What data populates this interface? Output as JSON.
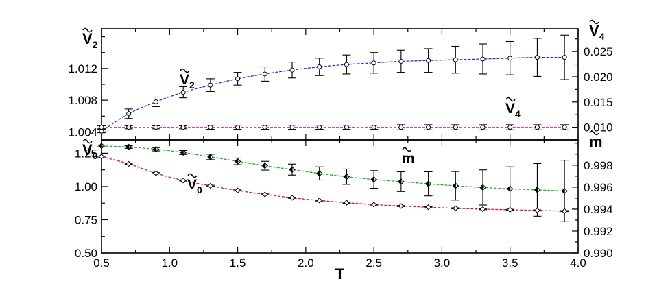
{
  "chart_data": [
    {
      "panel": "top",
      "type": "scatter",
      "xlabel": "T",
      "xlim": [
        0.5,
        4.0
      ],
      "x_ticks": [
        "0.5",
        "1.0",
        "1.5",
        "2.0",
        "2.5",
        "3.0",
        "3.5",
        "4.0"
      ],
      "left_axis": {
        "label": "V",
        "label_sub": "2",
        "ylim": [
          1.003,
          1.017
        ],
        "ticks": [
          "1.004",
          "1.008",
          "1.012"
        ]
      },
      "right_axis": {
        "label": "V",
        "label_sub": "4",
        "ylim": [
          0.0075,
          0.0295
        ],
        "ticks": [
          "0.010",
          "0.015",
          "0.020",
          "0.025"
        ]
      },
      "series": [
        {
          "name": "V",
          "name_sub": "2",
          "axis": "left",
          "marker": "open-circle",
          "fit_color": "#2b2bd0",
          "x": [
            0.5,
            0.7,
            0.9,
            1.1,
            1.3,
            1.5,
            1.7,
            1.9,
            2.1,
            2.3,
            2.5,
            2.7,
            2.9,
            3.1,
            3.3,
            3.5,
            3.7,
            3.9
          ],
          "y": [
            1.0041,
            1.0063,
            1.0078,
            1.009,
            1.0099,
            1.0107,
            1.0113,
            1.0118,
            1.0122,
            1.0125,
            1.0127,
            1.0129,
            1.013,
            1.0131,
            1.0132,
            1.0133,
            1.0134,
            1.0134
          ],
          "err": [
            0.0002,
            0.0006,
            0.0006,
            0.0007,
            0.0008,
            0.0008,
            0.0009,
            0.001,
            0.0011,
            0.0012,
            0.0013,
            0.0014,
            0.0015,
            0.0017,
            0.0019,
            0.0021,
            0.0024,
            0.0028
          ]
        },
        {
          "name": "V",
          "name_sub": "4",
          "axis": "right",
          "marker": "open-circle",
          "fit_color": "#d040c8",
          "x": [
            0.5,
            0.7,
            0.9,
            1.1,
            1.3,
            1.5,
            1.7,
            1.9,
            2.1,
            2.3,
            2.5,
            2.7,
            2.9,
            3.1,
            3.3,
            3.5,
            3.7,
            3.9
          ],
          "y": [
            0.01,
            0.01,
            0.01,
            0.01,
            0.01,
            0.01,
            0.01,
            0.01,
            0.01,
            0.01,
            0.01,
            0.01,
            0.01,
            0.01,
            0.01,
            0.01,
            0.01,
            0.01
          ],
          "err": [
            0.0003,
            0.0003,
            0.0003,
            0.0003,
            0.0004,
            0.0004,
            0.0004,
            0.0004,
            0.0004,
            0.0004,
            0.0004,
            0.0005,
            0.0005,
            0.0005,
            0.0005,
            0.0005,
            0.0005,
            0.0005
          ]
        }
      ]
    },
    {
      "panel": "bottom",
      "type": "scatter",
      "xlabel": "T",
      "xlim": [
        0.5,
        4.0
      ],
      "x_ticks": [
        "0.5",
        "1.0",
        "1.5",
        "2.0",
        "2.5",
        "3.0",
        "3.5",
        "4.0"
      ],
      "left_axis": {
        "label": "V",
        "label_sub": "0",
        "ylim": [
          0.5,
          1.35
        ],
        "ticks": [
          "0.50",
          "0.75",
          "1.00",
          "1.25"
        ]
      },
      "right_axis": {
        "label": "m",
        "label_sub": "",
        "ylim": [
          0.99,
          1.0003
        ],
        "ticks": [
          "0.990",
          "0.992",
          "0.994",
          "0.996",
          "0.998"
        ]
      },
      "series": [
        {
          "name": "V",
          "name_sub": "0",
          "axis": "left",
          "marker": "open-diamond",
          "fit_color": "#d02020",
          "x": [
            0.5,
            0.7,
            0.9,
            1.1,
            1.3,
            1.5,
            1.7,
            1.9,
            2.1,
            2.3,
            2.5,
            2.7,
            2.9,
            3.1,
            3.3,
            3.5,
            3.7,
            3.9
          ],
          "y": [
            1.225,
            1.17,
            1.1,
            1.045,
            1.005,
            0.97,
            0.94,
            0.915,
            0.895,
            0.878,
            0.864,
            0.853,
            0.844,
            0.836,
            0.83,
            0.825,
            0.82,
            0.815
          ],
          "err": [
            0.004,
            0.004,
            0.004,
            0.004,
            0.004,
            0.004,
            0.004,
            0.004,
            0.004,
            0.004,
            0.004,
            0.004,
            0.004,
            0.004,
            0.004,
            0.004,
            0.004,
            0.004
          ]
        },
        {
          "name": "m",
          "name_sub": "",
          "axis": "right",
          "marker": "half-filled-diamond",
          "fit_color": "#20b020",
          "x": [
            0.5,
            0.7,
            0.9,
            1.1,
            1.3,
            1.5,
            1.7,
            1.9,
            2.1,
            2.3,
            2.5,
            2.7,
            2.9,
            3.1,
            3.3,
            3.5,
            3.7,
            3.9
          ],
          "y": [
            0.99975,
            0.99965,
            0.99945,
            0.99915,
            0.99875,
            0.99835,
            0.99795,
            0.9976,
            0.99725,
            0.99695,
            0.9967,
            0.9965,
            0.9963,
            0.99612,
            0.99597,
            0.99585,
            0.99575,
            0.99565
          ],
          "err": [
            8e-05,
            0.00012,
            0.00015,
            0.00018,
            0.00025,
            0.0003,
            0.0004,
            0.0005,
            0.0006,
            0.0007,
            0.0008,
            0.0009,
            0.0011,
            0.0013,
            0.0016,
            0.002,
            0.0024,
            0.0028
          ]
        }
      ]
    }
  ]
}
